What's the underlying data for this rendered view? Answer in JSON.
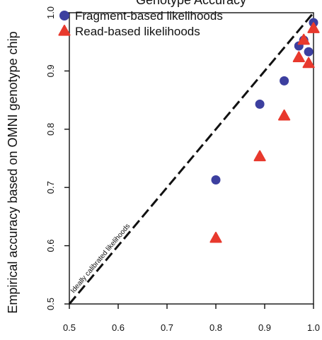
{
  "chart_data": {
    "type": "scatter",
    "title": "Genotype Accuracy",
    "ylabel": "Empirical accuracy based on OMNI genotype chip",
    "xlabel": "",
    "xlim": [
      0.5,
      1.0
    ],
    "ylim": [
      0.5,
      1.0
    ],
    "x_ticks": [
      "0.5",
      "0.6",
      "0.7",
      "0.8",
      "0.9",
      "1.0"
    ],
    "y_ticks": [
      "0.5",
      "0.6",
      "0.7",
      "0.8",
      "0.9",
      "1.0"
    ],
    "grid": false,
    "legend_position": "top-left",
    "series": [
      {
        "name": "Fragment-based likelihoods",
        "marker": "circle",
        "color": "#3c3f9f",
        "x": [
          0.8,
          0.89,
          0.94,
          0.97,
          0.98,
          0.99,
          1.0
        ],
        "y": [
          0.713,
          0.843,
          0.883,
          0.943,
          0.953,
          0.933,
          0.983
        ]
      },
      {
        "name": "Read-based likelihoods",
        "marker": "triangle",
        "color": "#e8392d",
        "x": [
          0.8,
          0.89,
          0.94,
          0.97,
          0.98,
          0.99,
          1.0
        ],
        "y": [
          0.613,
          0.753,
          0.823,
          0.923,
          0.953,
          0.913,
          0.973
        ]
      }
    ],
    "reference_line": {
      "label": "Ideally calibrated likelihoods",
      "x": [
        0.5,
        1.0
      ],
      "y": [
        0.5,
        1.0
      ],
      "style": "dashed",
      "color": "#111111"
    }
  }
}
